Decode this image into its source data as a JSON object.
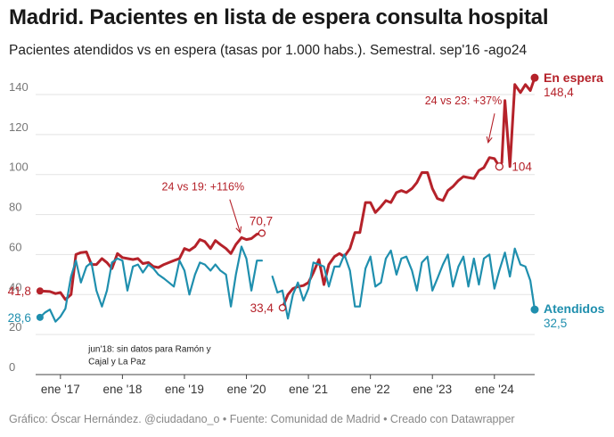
{
  "title": "Madrid. Pacientes en lista de espera consulta hospital",
  "subtitle": "Pacientes atendidos vs en espera (tasas por 1.000 habs.). Semestral. sep'16 -ago24",
  "footer": "Gráfico: Óscar Hernández. @ciudadano_o • Fuente: Comunidad de Madrid • Creado con Datawrapper",
  "colors": {
    "espera": "#b5222a",
    "atendidos": "#1f8fae"
  },
  "chart_data": {
    "type": "line",
    "title": "Madrid. Pacientes en lista de espera consulta hospital",
    "xlabel": "",
    "ylabel": "",
    "ylim": [
      0,
      148
    ],
    "yticks": [
      "0",
      "20",
      "40",
      "60",
      "80",
      "100",
      "120",
      "140"
    ],
    "ytick_values": [
      0,
      20,
      40,
      60,
      80,
      100,
      120,
      140
    ],
    "xticks": [
      {
        "label": "ene '17",
        "t": 2017.0
      },
      {
        "label": "ene '18",
        "t": 2018.0
      },
      {
        "label": "ene '19",
        "t": 2019.0
      },
      {
        "label": "ene '20",
        "t": 2020.0
      },
      {
        "label": "ene '21",
        "t": 2021.0
      },
      {
        "label": "ene '22",
        "t": 2022.0
      },
      {
        "label": "ene '23",
        "t": 2023.0
      },
      {
        "label": "ene '24",
        "t": 2024.0
      }
    ],
    "xlim": [
      2016.6,
      2024.65
    ],
    "series": [
      {
        "name": "En espera",
        "end_label": "148,4",
        "segments": [
          [
            [
              2016.67,
              41.8
            ],
            [
              2016.83,
              41.5
            ],
            [
              2016.92,
              40.5
            ],
            [
              2017.0,
              41.0
            ],
            [
              2017.08,
              37.5
            ],
            [
              2017.17,
              40
            ],
            [
              2017.25,
              60
            ],
            [
              2017.33,
              61
            ],
            [
              2017.42,
              61.3
            ],
            [
              2017.5,
              55
            ],
            [
              2017.58,
              55
            ],
            [
              2017.67,
              58
            ],
            [
              2017.75,
              56
            ],
            [
              2017.83,
              53
            ],
            [
              2017.92,
              60.5
            ],
            [
              2018.0,
              58.5
            ],
            [
              2018.08,
              58
            ],
            [
              2018.17,
              57.5
            ],
            [
              2018.25,
              58
            ],
            [
              2018.33,
              55.5
            ],
            [
              2018.42,
              56
            ],
            [
              2018.5,
              54
            ],
            [
              2018.58,
              53.5
            ],
            [
              2018.67,
              55
            ],
            [
              2018.75,
              56
            ],
            [
              2018.83,
              57
            ],
            [
              2018.92,
              58
            ],
            [
              2019.0,
              63
            ],
            [
              2019.08,
              62
            ],
            [
              2019.17,
              64
            ],
            [
              2019.25,
              67.5
            ],
            [
              2019.33,
              66.5
            ],
            [
              2019.42,
              63
            ],
            [
              2019.5,
              67
            ],
            [
              2019.58,
              65
            ],
            [
              2019.67,
              63
            ],
            [
              2019.75,
              60.5
            ],
            [
              2019.83,
              65
            ],
            [
              2019.92,
              68.5
            ],
            [
              2020.0,
              67.5
            ],
            [
              2020.08,
              68
            ],
            [
              2020.17,
              70.2
            ],
            [
              2020.25,
              70.7
            ]
          ],
          [
            [
              2020.58,
              33.4
            ],
            [
              2020.67,
              40
            ],
            [
              2020.75,
              43
            ],
            [
              2020.83,
              44
            ],
            [
              2020.92,
              44.5
            ],
            [
              2021.0,
              46
            ],
            [
              2021.08,
              51
            ],
            [
              2021.17,
              57.5
            ],
            [
              2021.25,
              45
            ],
            [
              2021.33,
              55
            ],
            [
              2021.42,
              59
            ],
            [
              2021.5,
              60.5
            ],
            [
              2021.58,
              59
            ],
            [
              2021.67,
              63
            ],
            [
              2021.75,
              71
            ],
            [
              2021.83,
              71
            ],
            [
              2021.92,
              86
            ],
            [
              2022.0,
              86
            ],
            [
              2022.08,
              81
            ],
            [
              2022.17,
              84
            ],
            [
              2022.25,
              87
            ],
            [
              2022.33,
              86
            ],
            [
              2022.42,
              91
            ],
            [
              2022.5,
              92
            ],
            [
              2022.58,
              91
            ],
            [
              2022.67,
              93
            ],
            [
              2022.75,
              96
            ],
            [
              2022.83,
              101
            ],
            [
              2022.92,
              101
            ],
            [
              2023.0,
              93
            ],
            [
              2023.08,
              88
            ],
            [
              2023.17,
              87
            ],
            [
              2023.25,
              92
            ],
            [
              2023.33,
              94
            ],
            [
              2023.42,
              97
            ],
            [
              2023.5,
              99
            ],
            [
              2023.58,
              98.5
            ],
            [
              2023.67,
              98
            ],
            [
              2023.75,
              102
            ],
            [
              2023.83,
              103.5
            ],
            [
              2023.92,
              108.5
            ],
            [
              2024.0,
              108
            ],
            [
              2024.08,
              104
            ],
            [
              2024.12,
              106
            ],
            [
              2024.17,
              137
            ],
            [
              2024.25,
              104
            ],
            [
              2024.33,
              145
            ],
            [
              2024.42,
              141
            ],
            [
              2024.5,
              145
            ],
            [
              2024.58,
              142
            ],
            [
              2024.65,
              148.4
            ]
          ]
        ]
      },
      {
        "name": "Atendidos",
        "end_label": "32,5",
        "segments": [
          [
            [
              2016.67,
              28.6
            ],
            [
              2016.75,
              31
            ],
            [
              2016.83,
              32.5
            ],
            [
              2016.92,
              26.5
            ],
            [
              2017.0,
              29
            ],
            [
              2017.08,
              33
            ],
            [
              2017.17,
              49
            ],
            [
              2017.25,
              57
            ],
            [
              2017.33,
              46
            ],
            [
              2017.42,
              54
            ],
            [
              2017.5,
              56
            ],
            [
              2017.58,
              42
            ],
            [
              2017.67,
              34
            ],
            [
              2017.75,
              42
            ],
            [
              2017.83,
              56
            ],
            [
              2017.92,
              58
            ],
            [
              2018.0,
              57
            ],
            [
              2018.08,
              42
            ],
            [
              2018.17,
              54
            ],
            [
              2018.25,
              55
            ],
            [
              2018.33,
              51
            ],
            [
              2018.42,
              55
            ],
            [
              2018.5,
              53
            ],
            [
              2018.58,
              50
            ],
            [
              2018.67,
              48
            ],
            [
              2018.75,
              46
            ],
            [
              2018.83,
              44
            ],
            [
              2018.92,
              57
            ],
            [
              2019.0,
              52
            ],
            [
              2019.08,
              40
            ],
            [
              2019.17,
              50
            ],
            [
              2019.25,
              56
            ],
            [
              2019.33,
              55
            ],
            [
              2019.42,
              52
            ],
            [
              2019.5,
              55
            ],
            [
              2019.58,
              52
            ],
            [
              2019.67,
              50
            ],
            [
              2019.75,
              34
            ],
            [
              2019.83,
              50
            ],
            [
              2019.92,
              64
            ],
            [
              2020.0,
              58
            ],
            [
              2020.08,
              42
            ],
            [
              2020.17,
              57
            ],
            [
              2020.25,
              57
            ]
          ],
          [
            [
              2020.42,
              49
            ],
            [
              2020.5,
              41
            ],
            [
              2020.58,
              42
            ],
            [
              2020.67,
              28
            ],
            [
              2020.75,
              40
            ],
            [
              2020.83,
              46
            ],
            [
              2020.92,
              37
            ],
            [
              2021.0,
              43
            ],
            [
              2021.08,
              56
            ],
            [
              2021.17,
              55
            ],
            [
              2021.25,
              54
            ],
            [
              2021.33,
              44
            ],
            [
              2021.42,
              54
            ],
            [
              2021.5,
              54
            ],
            [
              2021.58,
              60
            ],
            [
              2021.67,
              52
            ],
            [
              2021.75,
              34
            ],
            [
              2021.83,
              34
            ],
            [
              2021.92,
              53
            ],
            [
              2022.0,
              59
            ],
            [
              2022.08,
              44
            ],
            [
              2022.17,
              46
            ],
            [
              2022.25,
              58
            ],
            [
              2022.33,
              62
            ],
            [
              2022.42,
              50
            ],
            [
              2022.5,
              58
            ],
            [
              2022.58,
              59
            ],
            [
              2022.67,
              52
            ],
            [
              2022.75,
              42
            ],
            [
              2022.83,
              56
            ],
            [
              2022.92,
              59
            ],
            [
              2023.0,
              42
            ],
            [
              2023.08,
              48
            ],
            [
              2023.17,
              55
            ],
            [
              2023.25,
              60
            ],
            [
              2023.33,
              44
            ],
            [
              2023.42,
              54
            ],
            [
              2023.5,
              59
            ],
            [
              2023.58,
              44
            ],
            [
              2023.67,
              58
            ],
            [
              2023.75,
              45
            ],
            [
              2023.83,
              58
            ],
            [
              2023.92,
              60
            ],
            [
              2024.0,
              43
            ],
            [
              2024.08,
              52
            ],
            [
              2024.17,
              61
            ],
            [
              2024.25,
              49
            ],
            [
              2024.33,
              63
            ],
            [
              2024.42,
              55
            ],
            [
              2024.5,
              54
            ],
            [
              2024.58,
              47
            ],
            [
              2024.65,
              32.5
            ]
          ]
        ]
      }
    ],
    "point_labels": [
      {
        "series": "En espera",
        "text": "41,8",
        "t": 2016.67,
        "v": 41.8,
        "side": "left"
      },
      {
        "series": "Atendidos",
        "text": "28,6",
        "t": 2016.67,
        "v": 28.6,
        "side": "left"
      },
      {
        "series": "En espera",
        "text": "70,7",
        "t": 2020.25,
        "v": 70.7,
        "side": "above"
      },
      {
        "series": "En espera",
        "text": "33,4",
        "t": 2020.58,
        "v": 33.4,
        "side": "left"
      },
      {
        "series": "En espera",
        "text": "104",
        "t": 2024.08,
        "v": 104,
        "side": "right"
      }
    ],
    "annotations": [
      {
        "text": "24 vs 19: +116%",
        "t": 2019.3,
        "v": 92,
        "arrow_to": [
          2019.9,
          71
        ],
        "style": "red"
      },
      {
        "text": "24 vs 23: +37%",
        "t": 2023.5,
        "v": 135,
        "arrow_to": [
          2023.9,
          116
        ],
        "style": "red"
      },
      {
        "text": "jun'18: sin datos para Ramón y Cajal y La Paz",
        "lines": [
          "jun'18: sin datos para Ramón y",
          "Cajal y La Paz"
        ],
        "t": 2017.45,
        "v": 10,
        "style": "dark"
      }
    ]
  }
}
